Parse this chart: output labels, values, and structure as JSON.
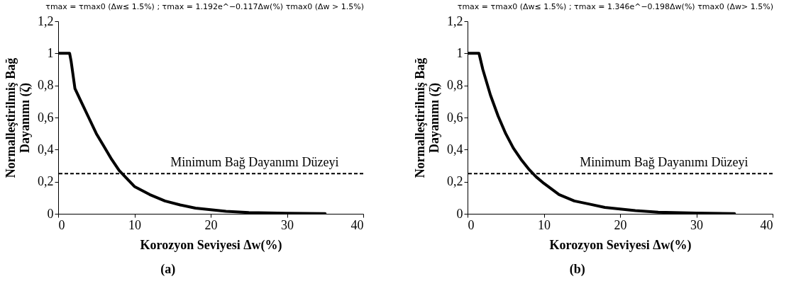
{
  "chart_data": [
    {
      "type": "line",
      "title": "τmax = τmax0  (Δw≤ 1.5%) ; τmax = 1.192e^−0.117Δw(%) τmax0 (Δw > 1.5%)",
      "xlabel": "Korozyon Seviyesi Δw(%)",
      "ylabel": "Normalleştirilmiş Bağ\nDayanımı  (ζ)",
      "annotations": [
        "(a)"
      ],
      "x": [
        0,
        1.3,
        1.5,
        1.7,
        2.2,
        3,
        4,
        5,
        6,
        7,
        8,
        9,
        10,
        12,
        14,
        16,
        18,
        20,
        22,
        25,
        30,
        35
      ],
      "series": [
        {
          "color": "#000000",
          "values": [
            1,
            1,
            1,
            0.95,
            0.78,
            0.7,
            0.6,
            0.5,
            0.42,
            0.34,
            0.27,
            0.22,
            0.17,
            0.12,
            0.08,
            0.055,
            0.035,
            0.025,
            0.015,
            0.008,
            0.003,
            0.001
          ]
        }
      ],
      "xlim": [
        0,
        40
      ],
      "xticks": [
        0,
        10,
        20,
        30,
        40
      ],
      "ylim": [
        0,
        1.2
      ],
      "yticks": [
        0,
        {
          "value": 0.2,
          "label": "0,2"
        },
        {
          "value": 0.4,
          "label": "0,4"
        },
        {
          "value": 0.6,
          "label": "0,6"
        },
        {
          "value": 0.8,
          "label": "0,8"
        },
        1,
        {
          "value": 1.2,
          "label": "1,2"
        }
      ],
      "ref_lines": [
        {
          "axis": "y",
          "value": 0.25,
          "label": "Minimum Bağ Dayanımı Düzeyi",
          "color": "#000000",
          "line_style": "dashed"
        }
      ],
      "grid": false,
      "marker": "none",
      "line_style": "solid"
    },
    {
      "type": "line",
      "title": "τmax = τmax0 (Δw≤ 1.5%) ; τmax = 1.346e^−0.198Δw(%) τmax0 (Δw> 1.5%)",
      "xlabel": "Korozyon Seviyesi Δw(%)",
      "ylabel": "Normalleştirilmiş Bağ\nDayanımı (ζ)",
      "annotations": [
        "(b)"
      ],
      "x": [
        0,
        1.3,
        1.5,
        2,
        3,
        4,
        5,
        6,
        7,
        8,
        9,
        10,
        12,
        14,
        16,
        18,
        20,
        22,
        25,
        30,
        35
      ],
      "series": [
        {
          "color": "#000000",
          "values": [
            1,
            1,
            1,
            0.9,
            0.74,
            0.61,
            0.5,
            0.41,
            0.34,
            0.28,
            0.23,
            0.19,
            0.12,
            0.08,
            0.06,
            0.04,
            0.03,
            0.02,
            0.01,
            0.004,
            0.001
          ]
        }
      ],
      "xlim": [
        0,
        40
      ],
      "xticks": [
        0,
        10,
        20,
        30,
        40
      ],
      "ylim": [
        0,
        1.2
      ],
      "yticks": [
        0,
        {
          "value": 0.2,
          "label": "0,2"
        },
        {
          "value": 0.4,
          "label": "0,4"
        },
        {
          "value": 0.6,
          "label": "0,6"
        },
        {
          "value": 0.8,
          "label": "0,8"
        },
        1,
        {
          "value": 1.2,
          "label": "1,2"
        }
      ],
      "ref_lines": [
        {
          "axis": "y",
          "value": 0.25,
          "label": "Minimum Bağ Dayanımı Düzeyi",
          "color": "#000000",
          "line_style": "dashed"
        }
      ],
      "grid": false,
      "marker": "none",
      "line_style": "solid"
    }
  ]
}
